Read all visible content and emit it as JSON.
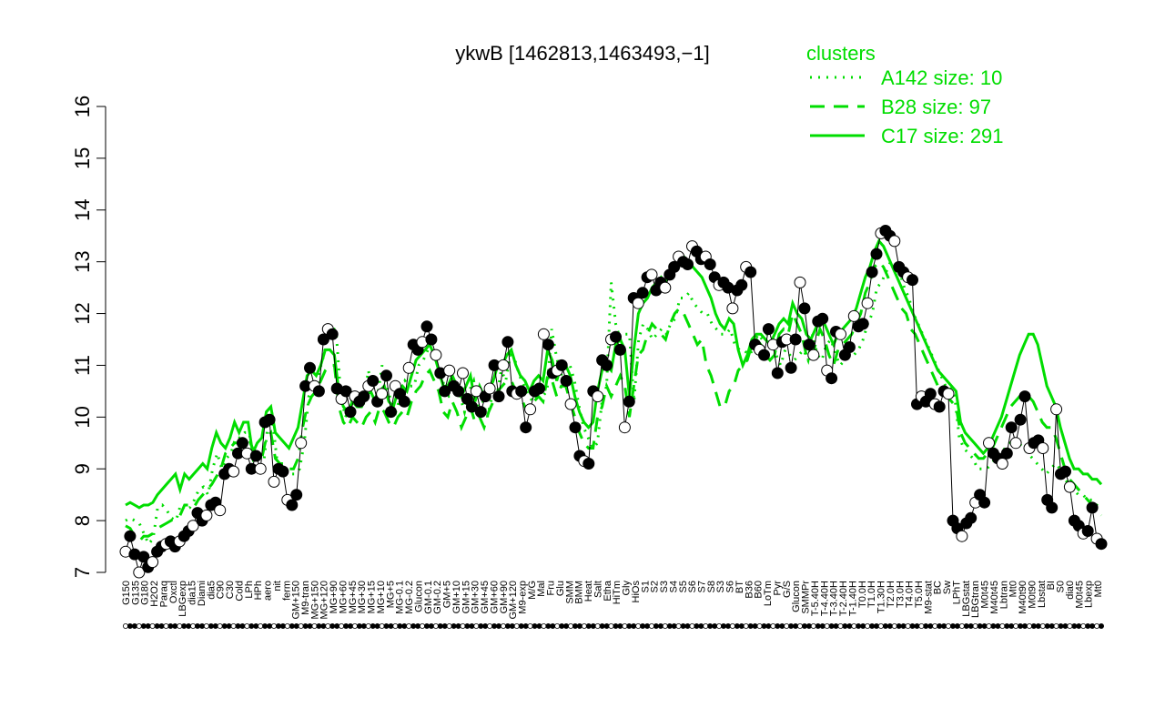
{
  "chart_data": {
    "type": "line",
    "title": "ykwB [1462813,1463493,−1]",
    "xlabel": "",
    "ylabel": "",
    "ylim": [
      7,
      16
    ],
    "yticks": [
      7,
      8,
      9,
      10,
      11,
      12,
      13,
      14,
      15,
      16
    ],
    "grid": false,
    "legend": {
      "title": "clusters",
      "placement": "top-right",
      "color": "#00dd00",
      "entries": [
        {
          "label": "A142 size: 10",
          "style": "dotted"
        },
        {
          "label": "B28 size: 97",
          "style": "dashed"
        },
        {
          "label": "C17 size: 291",
          "style": "solid"
        }
      ]
    },
    "x_tick_labels": [
      "G150",
      "G135",
      "G180",
      "H2O2",
      "Paraq",
      "Oxctl",
      "LBGexp",
      "dia15",
      "Diami",
      "dia5",
      "C90",
      "C30",
      "Cold",
      "LPh",
      "HPh",
      "aero",
      "nit",
      "ferm",
      "GM+150",
      "M9-tran",
      "MG+150",
      "MG+120",
      "MG+90",
      "MG+60",
      "MG+45",
      "MG+30",
      "MG+15",
      "MG+10",
      "MG+5",
      "MG-0.1",
      "MG-0.2",
      "Glucon",
      "GM-0.1",
      "GM-0.2",
      "GM+5",
      "GM+10",
      "GM+15",
      "GM+30",
      "GM+45",
      "GM+60",
      "GM+90",
      "GM+120",
      "M9-exp",
      "M/G",
      "Mal",
      "Fru",
      "Glu",
      "SMM",
      "BMM",
      "Heat",
      "Salt",
      "Etha",
      "HiTm",
      "Gly",
      "HiOs",
      "S1",
      "S2",
      "S3",
      "S4",
      "S5",
      "S6",
      "S7",
      "S8",
      "S3",
      "S6",
      "BT",
      "B36",
      "B60",
      "LoTm",
      "Pyr",
      "G/S",
      "Glucon",
      "SMMPr",
      "T-5.40H",
      "T-4.40H",
      "T-3.40H",
      "T-2.40H",
      "T-1.40H",
      "T0.0H",
      "T1.0H",
      "T1.30H",
      "T2.0H",
      "T3.0H",
      "T4.0H",
      "T5.0H",
      "M9-stat",
      "BC",
      "Sw",
      "LPhT",
      "LBGstat",
      "LBGtran",
      "M0t45",
      "M40t45",
      "Lbtran",
      "Mt0",
      "M40t90",
      "M0t90",
      "Lbstat",
      "BI",
      "S0",
      "dia0",
      "M0t45",
      "Lbexp",
      "Mt0"
    ],
    "series": [
      {
        "name": "",
        "style": "points",
        "values": [
          7.4,
          7.7,
          7.35,
          7.0,
          7.3,
          7.1,
          7.2,
          7.4,
          7.5,
          7.55,
          7.6,
          7.5,
          7.6,
          7.7,
          7.8,
          7.9,
          8.15,
          8.0,
          8.1,
          8.3,
          8.35,
          8.2,
          8.9,
          9.0,
          8.95,
          9.3,
          9.5,
          9.3,
          9.0,
          9.25,
          9.0,
          9.9,
          9.95,
          8.75,
          9.0,
          8.95,
          8.4,
          8.3,
          8.5,
          9.5,
          10.6,
          10.95,
          10.6,
          10.5,
          11.5,
          11.7,
          11.6,
          10.55,
          10.35,
          10.5,
          10.1,
          10.4,
          10.3,
          10.4,
          10.6,
          10.7,
          10.3,
          10.45,
          10.8,
          10.1,
          10.6,
          10.45,
          10.3,
          10.95,
          11.4,
          11.3,
          11.45,
          11.75,
          11.5,
          11.2,
          10.85,
          10.5,
          10.9,
          10.6,
          10.5,
          10.85,
          10.35,
          10.2,
          10.5,
          10.1,
          10.4,
          10.55,
          11.0,
          10.4,
          11.0,
          11.45,
          10.5,
          10.45,
          10.5,
          9.8,
          10.15,
          10.5,
          10.55,
          11.6,
          11.4,
          10.85,
          10.9,
          11.0,
          10.7,
          10.25,
          9.8,
          9.25,
          9.15,
          9.1,
          10.5,
          10.4,
          11.1,
          11.0,
          11.5,
          11.55,
          11.3,
          9.8,
          10.3,
          12.3,
          12.2,
          12.4,
          12.7,
          12.75,
          12.45,
          12.6,
          12.5,
          12.75,
          12.9,
          13.1,
          13.0,
          12.95,
          13.3,
          13.2,
          13.05,
          13.1,
          12.95,
          12.7,
          12.55,
          12.6,
          12.5,
          12.1,
          12.45,
          12.55,
          12.9,
          12.8,
          11.4,
          11.3,
          11.2,
          11.7,
          11.4,
          10.85,
          11.45,
          11.5,
          10.95,
          11.5,
          12.6,
          12.1,
          11.4,
          11.2,
          11.85,
          11.9,
          10.9,
          10.75,
          11.65,
          11.6,
          11.2,
          11.35,
          11.95,
          11.75,
          11.8,
          12.2,
          12.8,
          13.15,
          13.55,
          13.6,
          13.5,
          13.4,
          12.9,
          12.8,
          12.7,
          12.65,
          10.25,
          10.4,
          10.3,
          10.45,
          10.25,
          10.2,
          10.5,
          10.45,
          8.0,
          7.85,
          7.7,
          7.95,
          8.05,
          8.35,
          8.5,
          8.35,
          9.5,
          9.3,
          9.2,
          9.1,
          9.3,
          9.8,
          9.5,
          9.95,
          10.4,
          9.4,
          9.5,
          9.55,
          9.4,
          8.4,
          8.25,
          10.15,
          8.9,
          8.95,
          8.65,
          8.0,
          7.9,
          7.75,
          7.8,
          8.25,
          7.65,
          7.55
        ]
      },
      {
        "name": "A142 size: 10",
        "style": "dotted",
        "values": [
          8.0,
          8.05,
          8.0,
          7.95,
          7.75,
          7.55,
          7.65,
          8.25,
          8.3,
          8.2,
          8.05,
          8.0,
          8.3,
          8.2,
          8.25,
          8.4,
          8.6,
          8.65,
          8.5,
          9.0,
          9.3,
          9.0,
          9.2,
          9.3,
          9.6,
          9.6,
          9.7,
          9.7,
          9.1,
          9.2,
          9.0,
          9.8,
          10.0,
          9.2,
          9.1,
          9.0,
          8.9,
          8.9,
          9.0,
          9.5,
          10.4,
          10.6,
          10.8,
          11.1,
          11.5,
          11.8,
          11.6,
          10.4,
          10.0,
          10.2,
          10.5,
          10.4,
          10.3,
          10.9,
          10.5,
          10.4,
          11.0,
          10.6,
          10.3,
          10.1,
          10.4,
          10.7,
          10.6,
          10.6,
          11.0,
          11.1,
          11.3,
          11.3,
          11.0,
          10.8,
          10.4,
          10.4,
          10.6,
          10.4,
          10.1,
          10.5,
          10.7,
          10.2,
          10.3,
          10.0,
          10.4,
          10.4,
          10.9,
          10.7,
          11.2,
          11.1,
          10.8,
          10.6,
          10.4,
          10.3,
          10.5,
          10.4,
          10.5,
          11.7,
          11.2,
          10.8,
          11.0,
          11.0,
          10.7,
          10.2,
          9.8,
          9.6,
          9.4,
          9.5,
          10.3,
          10.6,
          12.6,
          11.8,
          11.5,
          11.6,
          11.6,
          10.3,
          11.5,
          11.8,
          11.7,
          11.5,
          11.6,
          11.7,
          11.6,
          11.8,
          11.9,
          12.3,
          12.3,
          12.4,
          12.2,
          12.1,
          12.0,
          12.0,
          11.8,
          11.7,
          11.6,
          11.6,
          11.7,
          11.4,
          11.3,
          11.3,
          11.2,
          11.3,
          11.6,
          11.5,
          11.6,
          11.4,
          11.2,
          11.0,
          11.3,
          11.2,
          11.1,
          11.2,
          11.3,
          11.1,
          11.6,
          11.2,
          11.1,
          11.4,
          11.5,
          11.2,
          11.0,
          11.1,
          11.3,
          11.2,
          11.3,
          11.5,
          11.8,
          12.0,
          12.5,
          12.6,
          12.8,
          13.0,
          13.0,
          12.8,
          12.5,
          12.3,
          12.0,
          11.8,
          11.6,
          11.4,
          11.2,
          11.0,
          10.8,
          10.6,
          10.6,
          10.4,
          9.6,
          9.4,
          9.3,
          9.2,
          9.0,
          9.0,
          9.0,
          9.1,
          9.2,
          9.3,
          9.4,
          9.5,
          9.6,
          9.5,
          9.4,
          9.3,
          9.2,
          9.1,
          9.0,
          8.9,
          9.0,
          9.1,
          9.0,
          8.8,
          8.7,
          8.6,
          8.5,
          8.5,
          8.4,
          8.4,
          8.3,
          8.2
        ]
      },
      {
        "name": "B28 size: 97",
        "style": "dashed",
        "values": [
          7.9,
          7.85,
          7.7,
          7.6,
          7.7,
          7.7,
          7.75,
          7.85,
          7.9,
          7.95,
          8.0,
          8.05,
          8.1,
          8.3,
          8.3,
          8.25,
          8.4,
          8.5,
          8.6,
          8.7,
          8.85,
          9.0,
          9.3,
          9.4,
          9.5,
          9.5,
          9.6,
          9.6,
          9.4,
          9.3,
          9.2,
          9.6,
          9.7,
          9.2,
          9.1,
          9.1,
          9.0,
          9.0,
          9.2,
          9.8,
          10.2,
          10.4,
          10.5,
          10.7,
          10.9,
          11.0,
          11.0,
          10.2,
          9.9,
          9.8,
          10.0,
          9.9,
          9.8,
          10.0,
          10.1,
          9.9,
          10.2,
          10.1,
          9.9,
          9.8,
          10.0,
          10.1,
          10.0,
          10.3,
          10.5,
          10.6,
          10.8,
          10.9,
          10.7,
          10.5,
          10.1,
          10.0,
          10.3,
          10.1,
          9.8,
          10.0,
          10.2,
          9.9,
          10.0,
          9.8,
          10.1,
          10.3,
          10.5,
          10.6,
          10.7,
          10.7,
          10.5,
          10.4,
          10.2,
          10.1,
          10.3,
          10.4,
          10.3,
          10.8,
          10.7,
          10.4,
          10.6,
          10.6,
          10.3,
          10.0,
          9.7,
          9.5,
          9.4,
          9.4,
          10.0,
          10.2,
          10.6,
          10.4,
          10.6,
          10.8,
          10.6,
          10.0,
          10.6,
          11.2,
          11.3,
          11.6,
          11.8,
          11.7,
          11.6,
          11.5,
          11.8,
          12.0,
          12.1,
          12.0,
          11.8,
          11.6,
          11.4,
          11.5,
          11.0,
          10.8,
          10.5,
          10.2,
          10.2,
          10.5,
          10.6,
          10.9,
          11.0,
          11.1,
          11.4,
          11.5,
          11.4,
          11.2,
          11.1,
          11.2,
          11.6,
          11.7,
          11.6,
          12.0,
          11.8,
          11.6,
          11.2,
          11.1,
          11.4,
          11.7,
          11.5,
          11.2,
          11.0,
          11.3,
          11.4,
          11.5,
          11.6,
          11.8,
          12.0,
          12.4,
          12.6,
          12.9,
          13.0,
          12.9,
          12.7,
          12.5,
          12.3,
          12.1,
          12.0,
          11.7,
          11.6,
          11.4,
          11.2,
          11.0,
          10.8,
          10.6,
          10.5,
          10.4,
          10.3,
          10.2,
          9.7,
          9.5,
          9.4,
          9.3,
          9.2,
          9.2,
          9.3,
          9.4,
          9.6,
          9.8,
          10.0,
          10.2,
          10.3,
          10.4,
          10.4,
          10.4,
          10.3,
          10.1,
          9.9,
          9.8,
          9.8,
          9.6,
          9.3,
          9.0,
          8.8,
          8.7,
          8.6,
          8.5,
          8.4,
          8.3,
          8.2,
          8.1
        ]
      },
      {
        "name": "C17 size: 291",
        "style": "solid",
        "values": [
          8.3,
          8.35,
          8.3,
          8.25,
          8.3,
          8.3,
          8.35,
          8.5,
          8.6,
          8.7,
          8.8,
          8.9,
          8.6,
          8.9,
          8.8,
          8.9,
          9.0,
          9.1,
          9.0,
          9.4,
          9.7,
          9.5,
          9.4,
          9.6,
          9.9,
          9.7,
          9.9,
          9.9,
          9.3,
          9.5,
          9.6,
          10.1,
          10.2,
          9.7,
          9.6,
          9.5,
          9.4,
          9.6,
          9.8,
          10.3,
          10.8,
          10.9,
          10.8,
          11.0,
          11.3,
          11.3,
          11.2,
          10.5,
          10.2,
          10.1,
          10.3,
          10.2,
          10.2,
          10.4,
          10.5,
          10.3,
          10.5,
          10.6,
          10.3,
          10.2,
          10.5,
          10.6,
          10.5,
          10.8,
          11.1,
          11.2,
          11.3,
          11.4,
          11.2,
          10.9,
          10.6,
          10.6,
          10.8,
          10.6,
          10.4,
          10.6,
          10.8,
          10.3,
          10.6,
          10.4,
          10.5,
          10.7,
          11.0,
          11.0,
          11.2,
          11.3,
          11.0,
          10.8,
          10.7,
          10.5,
          10.7,
          10.8,
          10.7,
          11.3,
          11.1,
          10.7,
          11.0,
          11.0,
          10.8,
          10.4,
          10.1,
          9.9,
          9.8,
          9.9,
          10.5,
          10.9,
          11.0,
          10.9,
          11.4,
          11.5,
          11.3,
          10.4,
          11.3,
          12.0,
          12.2,
          12.3,
          12.5,
          12.6,
          12.7,
          12.6,
          12.8,
          12.9,
          13.0,
          13.1,
          13.0,
          12.9,
          12.8,
          12.7,
          12.5,
          12.3,
          12.0,
          11.8,
          11.7,
          11.9,
          11.8,
          11.3,
          11.0,
          11.2,
          11.5,
          11.6,
          11.6,
          11.5,
          11.4,
          11.6,
          11.8,
          11.9,
          11.8,
          12.2,
          12.0,
          11.9,
          11.6,
          11.5,
          11.7,
          11.9,
          11.8,
          11.6,
          11.4,
          11.6,
          11.7,
          11.8,
          11.9,
          12.1,
          12.4,
          12.7,
          12.9,
          13.2,
          13.4,
          13.3,
          13.1,
          12.9,
          12.7,
          12.5,
          12.3,
          12.1,
          11.9,
          11.7,
          11.5,
          11.3,
          11.1,
          10.9,
          10.8,
          10.7,
          10.6,
          10.5,
          9.9,
          9.7,
          9.6,
          9.5,
          9.4,
          9.3,
          9.4,
          9.6,
          9.8,
          10.0,
          10.3,
          10.6,
          10.9,
          11.2,
          11.4,
          11.6,
          11.6,
          11.4,
          11.0,
          10.6,
          10.4,
          10.2,
          9.8,
          9.5,
          9.2,
          9.0,
          9.0,
          8.9,
          8.9,
          8.8,
          8.8,
          8.7
        ]
      }
    ]
  }
}
